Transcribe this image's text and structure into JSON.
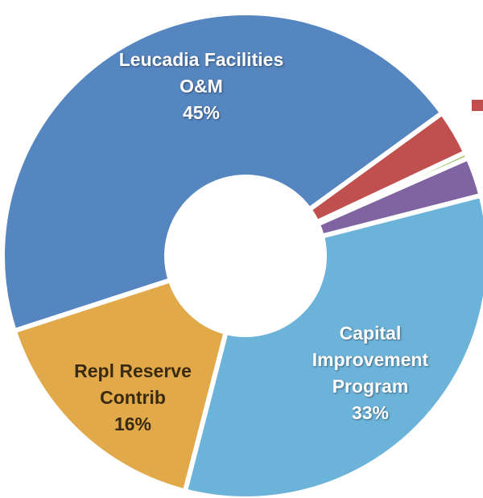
{
  "chart_data": {
    "type": "donut",
    "categories": [
      "Leucadia Facilities O&M",
      null,
      null,
      null,
      "Capital Improvement Program",
      "Repl Reserve Contrib"
    ],
    "values": [
      45,
      3,
      0.4,
      2.6,
      33,
      16
    ],
    "value_labels": [
      "45%",
      null,
      null,
      null,
      "33%",
      "16%"
    ],
    "colors": [
      "#5686c0",
      "#c0504d",
      "#9bbb59",
      "#8064a2",
      "#6cb3da",
      "#e1a94a"
    ]
  }
}
